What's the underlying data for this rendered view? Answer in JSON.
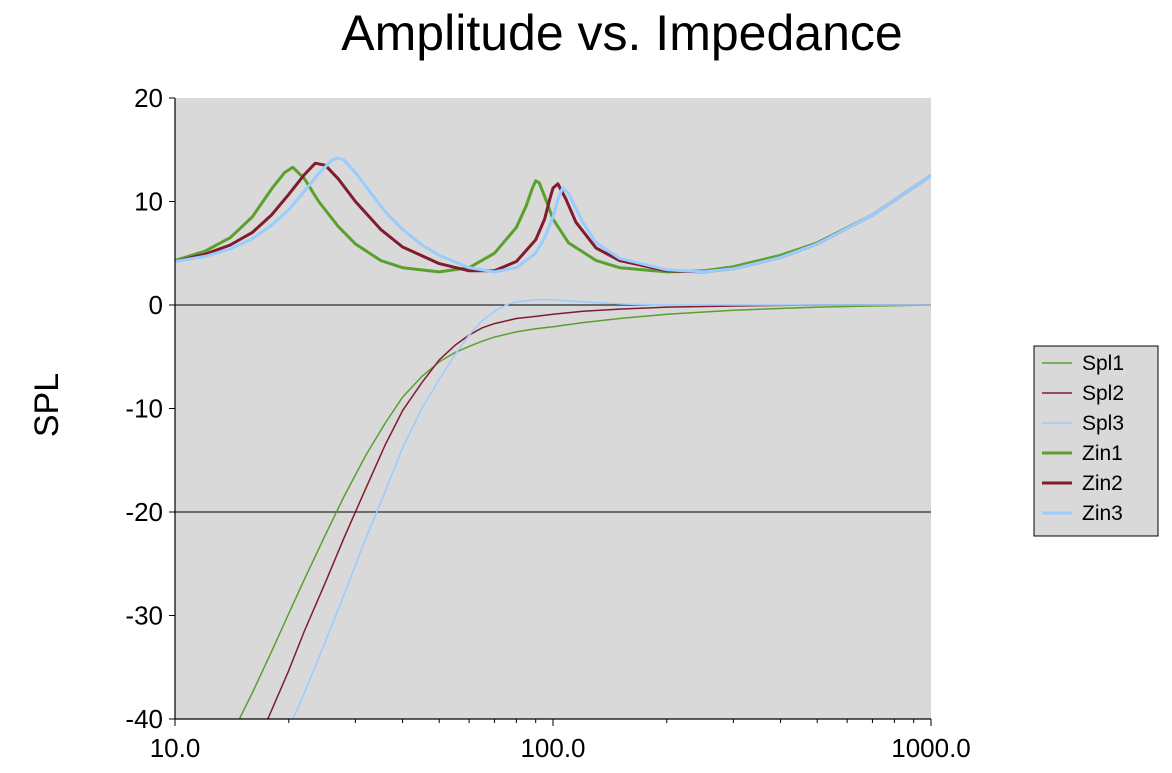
{
  "chart_data": {
    "type": "line",
    "title": "Amplitude vs. Impedance",
    "ylabel": "SPL",
    "xlabel": "",
    "x_scale": "log",
    "xlim": [
      10,
      1000
    ],
    "ylim": [
      -40,
      20
    ],
    "x_ticks": [
      10,
      100,
      1000
    ],
    "x_tick_labels": [
      "10.0",
      "100.0",
      "1000.0"
    ],
    "y_ticks": [
      20,
      10,
      0,
      -10,
      -20,
      -30,
      -40
    ],
    "y_tick_labels": [
      "20",
      "10",
      "0",
      "-10",
      "-20",
      "-30",
      "-40"
    ],
    "grid": {
      "horizontal": [
        0,
        -20
      ]
    },
    "legend_position": "right",
    "plot_background": "#d9d9d9",
    "series": [
      {
        "name": "Spl1",
        "color": "#5aa02c",
        "width": 1.5,
        "x": [
          14.8,
          16,
          18,
          20,
          22,
          25,
          28,
          32,
          36,
          40,
          45,
          50,
          55,
          60,
          65,
          70,
          80,
          90,
          100,
          120,
          150,
          200,
          300,
          500,
          700,
          1000
        ],
        "y": [
          -40,
          -37.5,
          -33.5,
          -29.8,
          -26.5,
          -22.2,
          -18.5,
          -14.5,
          -11.4,
          -8.9,
          -6.9,
          -5.5,
          -4.6,
          -4,
          -3.5,
          -3.1,
          -2.6,
          -2.3,
          -2.1,
          -1.7,
          -1.3,
          -0.9,
          -0.5,
          -0.2,
          -0.1,
          0
        ]
      },
      {
        "name": "Spl2",
        "color": "#7f1c2e",
        "width": 1.5,
        "x": [
          17.6,
          20,
          22,
          25,
          28,
          32,
          36,
          40,
          45,
          50,
          55,
          60,
          65,
          70,
          80,
          90,
          100,
          120,
          150,
          200,
          300,
          500,
          1000
        ],
        "y": [
          -40,
          -35.3,
          -31.5,
          -26.8,
          -22.5,
          -17.7,
          -13.5,
          -10.2,
          -7.5,
          -5.3,
          -3.9,
          -2.9,
          -2.2,
          -1.8,
          -1.3,
          -1.1,
          -0.9,
          -0.6,
          -0.4,
          -0.2,
          -0.1,
          0,
          0
        ]
      },
      {
        "name": "Spl3",
        "color": "#99ccff",
        "width": 1.5,
        "x": [
          20.5,
          22,
          25,
          28,
          32,
          36,
          40,
          45,
          50,
          55,
          60,
          65,
          70,
          75,
          80,
          90,
          100,
          120,
          150,
          200,
          300,
          500,
          1000
        ],
        "y": [
          -40,
          -37.5,
          -32.5,
          -28,
          -22.5,
          -18,
          -13.8,
          -10,
          -7.2,
          -4.8,
          -2.9,
          -1.5,
          -0.6,
          0,
          0.3,
          0.5,
          0.5,
          0.3,
          0.1,
          0,
          0,
          0,
          0
        ]
      },
      {
        "name": "Zin1",
        "color": "#5aa02c",
        "width": 3,
        "x": [
          10,
          12,
          14,
          16,
          18,
          19.5,
          20.5,
          22,
          24,
          27,
          30,
          35,
          40,
          50,
          60,
          70,
          80,
          85,
          88,
          90,
          92,
          95,
          100,
          110,
          130,
          150,
          200,
          250,
          300,
          400,
          500,
          700,
          1000
        ],
        "y": [
          4.3,
          5.2,
          6.5,
          8.5,
          11.2,
          12.8,
          13.3,
          12.2,
          10,
          7.6,
          5.9,
          4.3,
          3.6,
          3.2,
          3.6,
          5,
          7.5,
          9.6,
          11.2,
          12,
          11.8,
          10.5,
          8.3,
          6,
          4.3,
          3.6,
          3.2,
          3.3,
          3.7,
          4.8,
          6,
          8.7,
          12.5
        ]
      },
      {
        "name": "Zin2",
        "color": "#7f1c2e",
        "width": 3,
        "x": [
          10,
          12,
          14,
          16,
          18,
          20,
          22,
          23.5,
          25,
          27,
          30,
          35,
          40,
          50,
          60,
          70,
          80,
          90,
          95,
          98,
          100,
          103,
          108,
          115,
          130,
          150,
          200,
          250,
          300,
          400,
          500,
          700,
          1000
        ],
        "y": [
          4.2,
          4.9,
          5.8,
          7,
          8.7,
          10.7,
          12.6,
          13.7,
          13.5,
          12.2,
          10,
          7.3,
          5.6,
          4,
          3.3,
          3.3,
          4.2,
          6.3,
          8.3,
          10.2,
          11.3,
          11.7,
          10.3,
          8,
          5.5,
          4.3,
          3.3,
          3.2,
          3.5,
          4.6,
          5.9,
          8.7,
          12.5
        ]
      },
      {
        "name": "Zin3",
        "color": "#99ccff",
        "width": 3,
        "x": [
          10,
          12,
          14,
          16,
          18,
          20,
          22,
          24,
          26,
          27,
          28,
          30,
          33,
          36,
          40,
          45,
          50,
          60,
          70,
          80,
          90,
          95,
          100,
          103,
          106,
          110,
          115,
          120,
          130,
          150,
          200,
          250,
          300,
          400,
          500,
          700,
          1000
        ],
        "y": [
          4.2,
          4.7,
          5.4,
          6.4,
          7.7,
          9.2,
          11,
          12.7,
          14,
          14.2,
          14,
          12.8,
          10.8,
          9,
          7.3,
          5.8,
          4.8,
          3.6,
          3.2,
          3.6,
          5,
          6.5,
          8.5,
          10.2,
          11.3,
          10.8,
          9.3,
          8,
          6,
          4.5,
          3.4,
          3.2,
          3.5,
          4.6,
          5.9,
          8.7,
          12.5
        ]
      }
    ]
  }
}
